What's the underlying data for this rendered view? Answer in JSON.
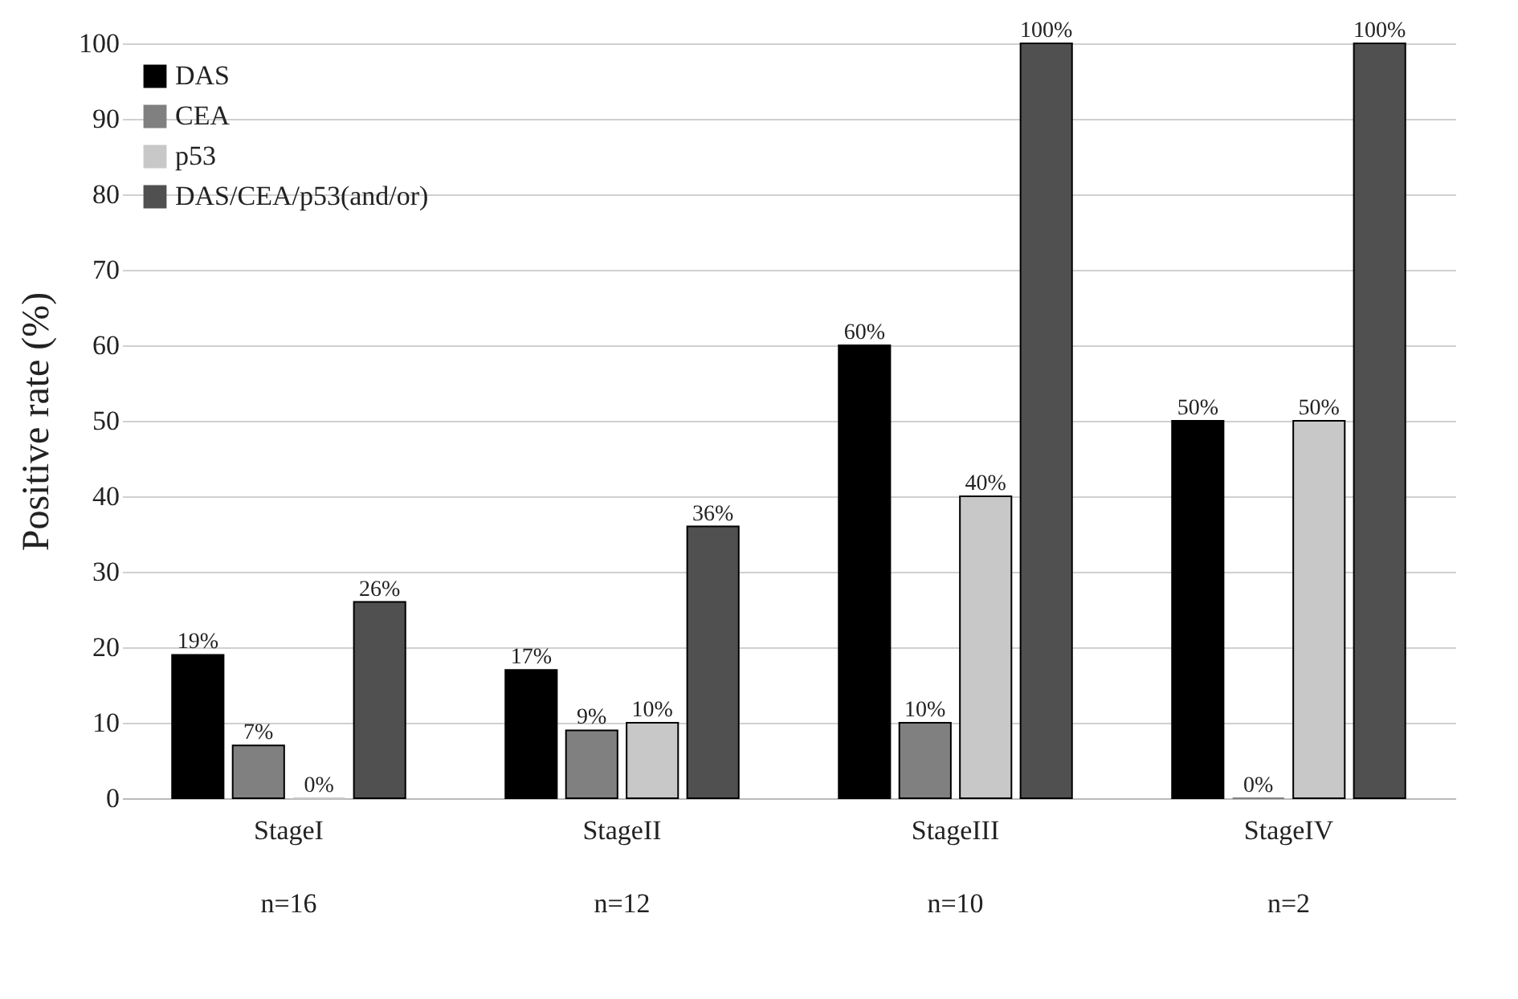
{
  "chart_data": {
    "type": "bar",
    "ylabel": "Positive rate (%)",
    "categories": [
      "StageI",
      "StageII",
      "StageIII",
      "StageIV"
    ],
    "series": [
      {
        "name": "DAS",
        "color": "#000000",
        "values": [
          19,
          17,
          60,
          50
        ],
        "value_labels": [
          "19%",
          "17%",
          "60%",
          "50%"
        ]
      },
      {
        "name": "CEA",
        "color": "#808080",
        "values": [
          7,
          9,
          10,
          0
        ],
        "value_labels": [
          "7%",
          "9%",
          "10%",
          "0%"
        ]
      },
      {
        "name": "p53",
        "color": "#c8c8c8",
        "values": [
          0,
          10,
          40,
          50
        ],
        "value_labels": [
          "0%",
          "10%",
          "40%",
          "50%"
        ]
      },
      {
        "name": "DAS/CEA/p53(and/or)",
        "color": "#505050",
        "values": [
          26,
          36,
          100,
          100
        ],
        "value_labels": [
          "26%",
          "36%",
          "100%",
          "100%"
        ]
      }
    ],
    "ylim": [
      0,
      100
    ],
    "yticks": [
      0,
      10,
      20,
      30,
      40,
      50,
      60,
      70,
      80,
      90,
      100
    ],
    "grid": "y",
    "legend": "top left",
    "annotations": [
      "n=16",
      "n=12",
      "n=10",
      "n=2"
    ]
  }
}
